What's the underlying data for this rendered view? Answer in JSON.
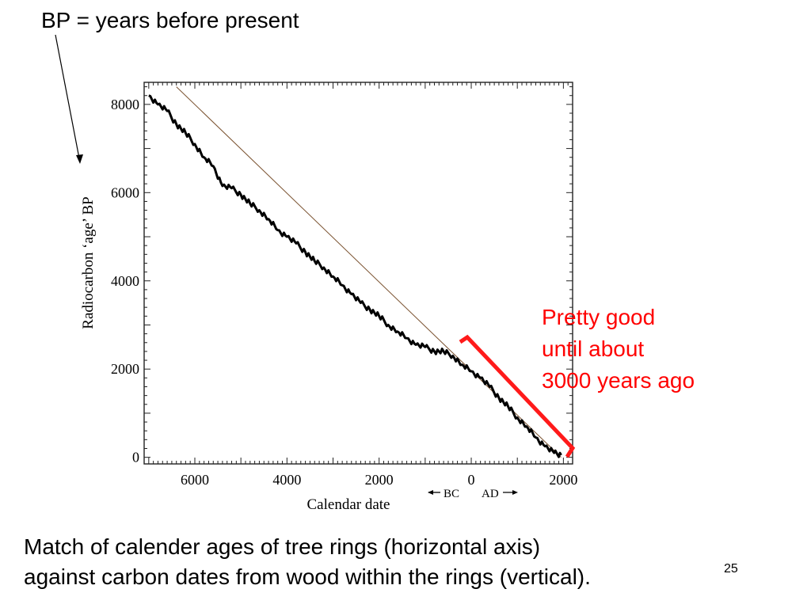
{
  "slide": {
    "title": "BP = years before present",
    "annotation_lines": [
      "Pretty good",
      "until about",
      "3000 years ago"
    ],
    "caption_lines": [
      "Match of calender ages of tree rings (horizontal axis)",
      "against carbon dates from wood within the rings (vertical)."
    ],
    "page_number": "25"
  },
  "colors": {
    "annotation": "#ff0000",
    "data": "#000000",
    "reference_line": "#7a5230"
  },
  "chart_data": {
    "type": "line",
    "xlabel": "Calendar date",
    "ylabel": "Radiocarbon ‘age’ BP",
    "x_reversed": true,
    "xlim": [
      7100,
      -2200
    ],
    "ylim": [
      -150,
      8500
    ],
    "xticks": [
      6000,
      4000,
      2000,
      0,
      -2000
    ],
    "xtick_labels": [
      "6000",
      "4000",
      "2000",
      "0",
      "2000"
    ],
    "yticks": [
      0,
      2000,
      4000,
      6000,
      8000
    ],
    "ytick_labels": [
      "0",
      "2000",
      "4000",
      "6000",
      "8000"
    ],
    "era_labels": {
      "bc": "BC",
      "ad": "AD"
    },
    "series": [
      {
        "x": [
          7000,
          6800,
          6600,
          6400,
          6200,
          6000,
          5800,
          5600,
          5400,
          5200,
          5000,
          4800,
          4600,
          4400,
          4200,
          4000,
          3800,
          3600,
          3400,
          3200,
          3000,
          2800,
          2600,
          2400,
          2200,
          2000,
          1800,
          1600,
          1400,
          1200,
          1000,
          800,
          600,
          400,
          200,
          0,
          -200,
          -400,
          -600,
          -800,
          -1000,
          -1200,
          -1400,
          -1600,
          -1800,
          -1950
        ],
        "y": [
          8200,
          8000,
          7850,
          7550,
          7350,
          7100,
          6800,
          6600,
          6150,
          6100,
          5950,
          5750,
          5600,
          5400,
          5150,
          5000,
          4850,
          4650,
          4450,
          4300,
          4100,
          3900,
          3700,
          3500,
          3350,
          3200,
          3000,
          2850,
          2700,
          2550,
          2500,
          2400,
          2400,
          2300,
          2100,
          1950,
          1800,
          1600,
          1350,
          1150,
          900,
          700,
          450,
          250,
          100,
          50
        ]
      },
      {
        "x": [
          6400,
          -1950
        ],
        "y": [
          8400,
          0
        ]
      }
    ]
  }
}
